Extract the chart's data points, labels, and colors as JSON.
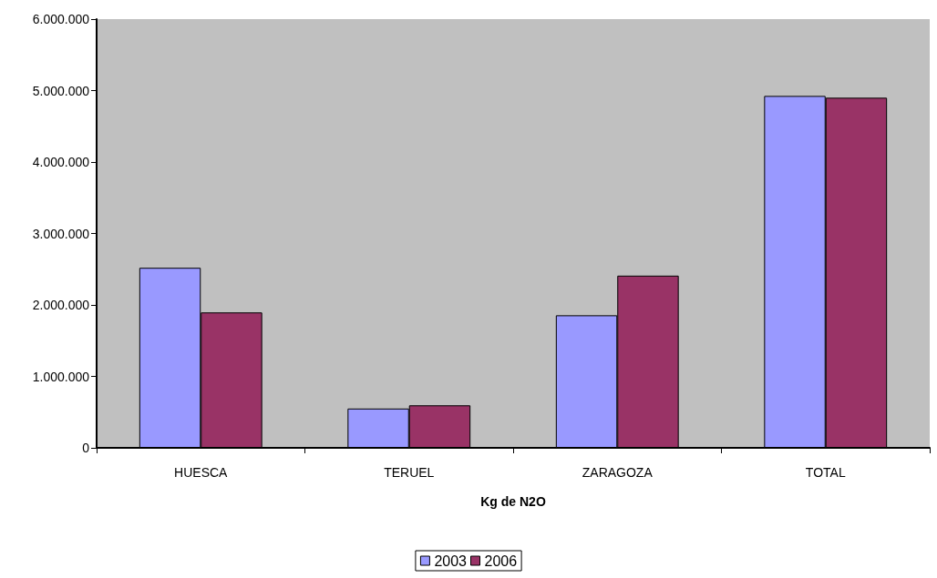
{
  "chart_data": {
    "type": "bar",
    "xlabel": "Kg de N2O",
    "categories": [
      "HUESCA",
      "TERUEL",
      "ZARAGOZA",
      "TOTAL"
    ],
    "series": [
      {
        "name": "2003",
        "color": "#9999ff",
        "values": [
          2520000,
          550000,
          1855000,
          4925000
        ]
      },
      {
        "name": "2006",
        "color": "#993366",
        "values": [
          1895000,
          595000,
          2410000,
          4900000
        ]
      }
    ],
    "ylim": [
      0,
      6000000
    ],
    "yticks": [
      {
        "value": 0,
        "label": "0"
      },
      {
        "value": 1000000,
        "label": "1.000.000"
      },
      {
        "value": 2000000,
        "label": "2.000.000"
      },
      {
        "value": 3000000,
        "label": "3.000.000"
      },
      {
        "value": 4000000,
        "label": "4.000.000"
      },
      {
        "value": 5000000,
        "label": "5.000.000"
      },
      {
        "value": 6000000,
        "label": "6.000.000"
      }
    ],
    "grid": false,
    "legend": "bottom"
  }
}
